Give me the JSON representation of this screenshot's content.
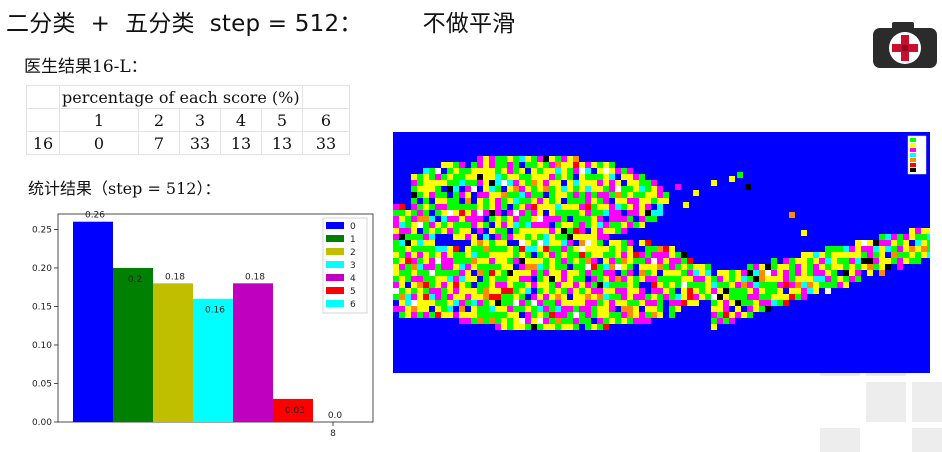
{
  "slide": {
    "title": "二分类  +  五分类  step = 512：        不做平滑",
    "doctor_label": "医生结果16-L：",
    "stats_label": "统计结果（step = 512）："
  },
  "score_table": {
    "header": "percentage of each score (%)",
    "score_labels": [
      "1",
      "2",
      "3",
      "4",
      "5",
      "6"
    ],
    "row_label": "16",
    "values": [
      "0",
      "7",
      "33",
      "13",
      "13",
      "33"
    ]
  },
  "colors": {
    "accent_red": "#c8102e",
    "logo_dark": "#2b2b2b",
    "heatmap_bg": "#0000ff"
  },
  "chart_data": {
    "type": "bar",
    "categories": [
      "0",
      "1",
      "2",
      "3",
      "4",
      "5",
      "6"
    ],
    "values": [
      0.26,
      0.2,
      0.18,
      0.16,
      0.18,
      0.03,
      0.0
    ],
    "value_labels": [
      "0.26",
      "0.2",
      "0.18",
      "0.16",
      "0.18",
      "0.03",
      "0.0"
    ],
    "colors": [
      "#0000ff",
      "#008000",
      "#bfbf00",
      "#00ffff",
      "#bf00bf",
      "#ff0000",
      "#00ffff"
    ],
    "legend": [
      "0",
      "1",
      "2",
      "3",
      "4",
      "5",
      "6"
    ],
    "legend_position": "top-right",
    "xtick_labels": [
      "8"
    ],
    "ylim": [
      0,
      0.27
    ],
    "yticks": [
      "0.00",
      "0.05",
      "0.10",
      "0.15",
      "0.20",
      "0.25"
    ],
    "grid": false,
    "title": "",
    "xlabel": "",
    "ylabel": ""
  },
  "heatmap": {
    "type": "heatmap",
    "background_color": "#0000ff",
    "palette": [
      "#00ff00",
      "#ffff00",
      "#ff00ff",
      "#00ffff",
      "#ff8c00",
      "#ff0000",
      "#000000",
      "#ffffff"
    ]
  }
}
